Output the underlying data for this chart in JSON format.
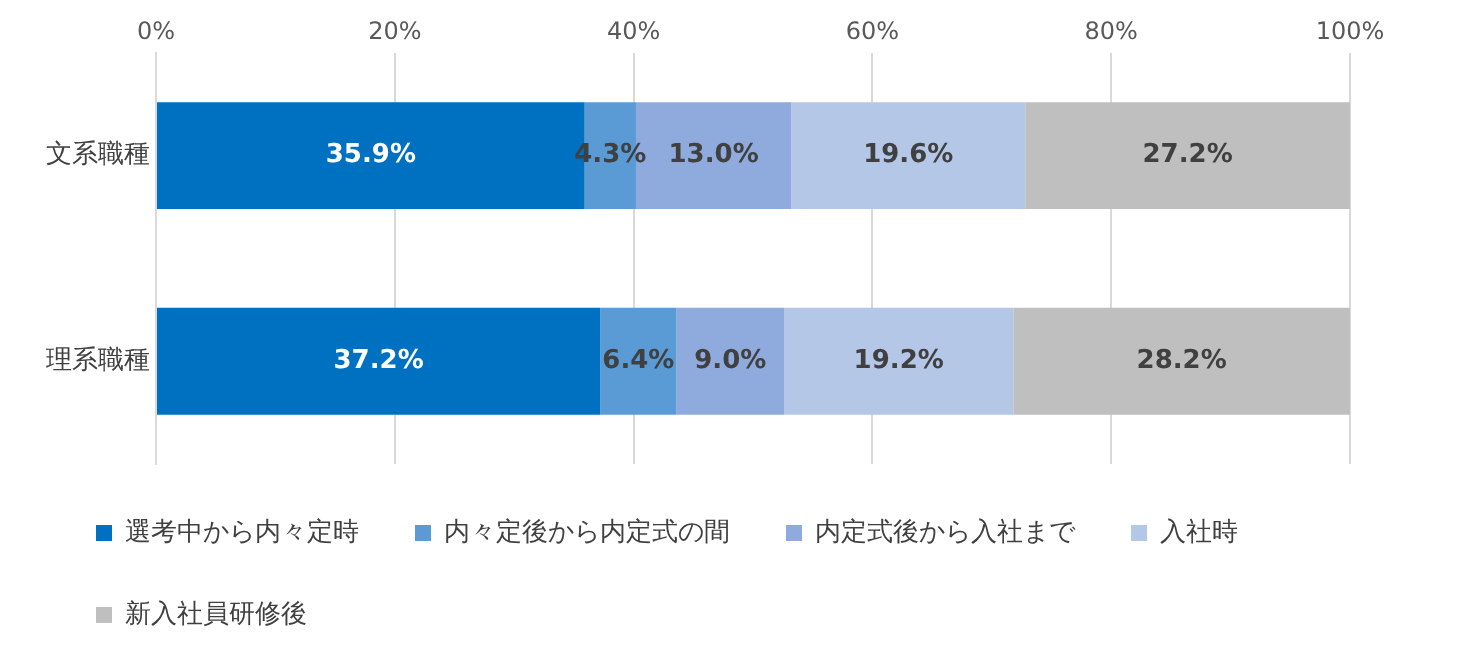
{
  "chart_data": {
    "type": "bar",
    "orientation": "horizontal",
    "stacked": true,
    "categories": [
      "文系職種",
      "理系職種"
    ],
    "series": [
      {
        "name": "選考中から内々定時",
        "color": "#0070c0",
        "values": [
          35.9,
          37.2
        ],
        "value_labels": [
          "35.9%",
          "37.2%"
        ]
      },
      {
        "name": "内々定後から内定式の間",
        "color": "#5b9bd5",
        "values": [
          4.3,
          6.4
        ],
        "value_labels": [
          "4.3%",
          "6.4%"
        ]
      },
      {
        "name": "内定式後から入社まで",
        "color": "#8faadc",
        "values": [
          13.0,
          9.0
        ],
        "value_labels": [
          "13.0%",
          "9.0%"
        ]
      },
      {
        "name": "入社時",
        "color": "#b4c7e7",
        "values": [
          19.6,
          19.2
        ],
        "value_labels": [
          "19.6%",
          "19.2%"
        ]
      },
      {
        "name": "新入社員研修後",
        "color": "#bfbfbf",
        "values": [
          27.2,
          28.2
        ],
        "value_labels": [
          "27.2%",
          "28.2%"
        ]
      }
    ],
    "xlim": [
      0,
      100
    ],
    "xticks": [
      {
        "value": 0,
        "label": "0%"
      },
      {
        "value": 20,
        "label": "20%"
      },
      {
        "value": 40,
        "label": "40%"
      },
      {
        "value": 60,
        "label": "60%"
      },
      {
        "value": 80,
        "label": "80%"
      },
      {
        "value": 100,
        "label": "100%"
      }
    ],
    "grid": "x",
    "legend": "bottom"
  }
}
